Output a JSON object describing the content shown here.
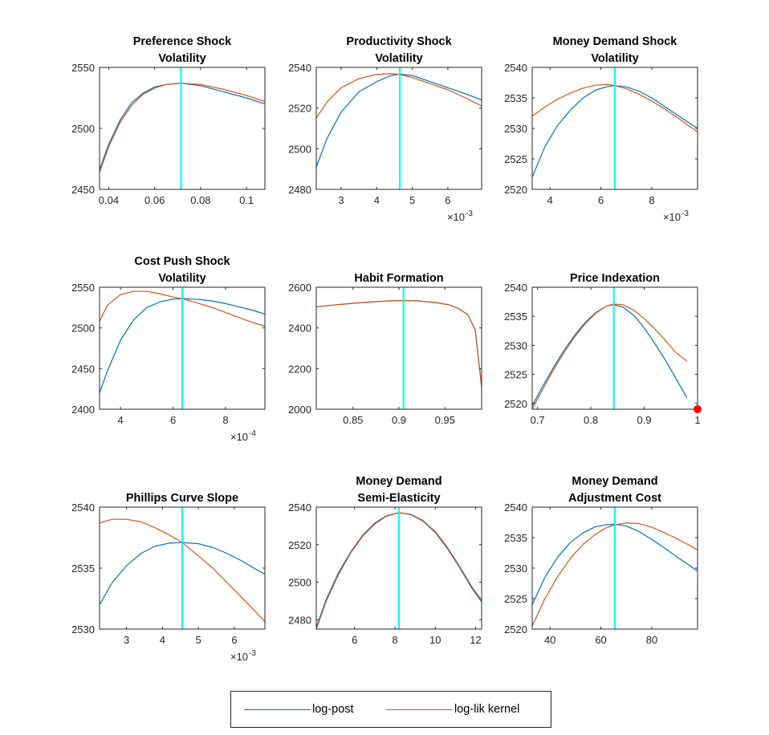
{
  "colors": {
    "log_post": "#0072BD",
    "log_lik_kernel": "#D95319",
    "mode_line": "#00FFFF",
    "bound_marker": "#FF0000",
    "axis": "#262626"
  },
  "legend": {
    "placement": "bottom-center",
    "entries": [
      "log-post",
      "log-lik kernel"
    ]
  },
  "chart_data": [
    {
      "type": "line",
      "title_lines": [
        "Preference Shock",
        "Volatility"
      ],
      "xlim": [
        0.036,
        0.108
      ],
      "ylim": [
        2450,
        2550
      ],
      "xticks": [
        0.04,
        0.06,
        0.08,
        0.1
      ],
      "xtick_labels": [
        "0.04",
        "0.06",
        "0.08",
        "0.1"
      ],
      "yticks": [
        2450,
        2500,
        2550
      ],
      "ytick_labels": [
        "2450",
        "2500",
        "2550"
      ],
      "x_multiplier": null,
      "mode_x": 0.0715,
      "series": [
        {
          "name": "log-post",
          "x": [
            0.036,
            0.04,
            0.045,
            0.05,
            0.055,
            0.06,
            0.065,
            0.0715,
            0.08,
            0.09,
            0.1,
            0.108
          ],
          "y": [
            2466,
            2487,
            2507,
            2521,
            2529,
            2534,
            2536,
            2537,
            2535,
            2530,
            2525,
            2520
          ]
        },
        {
          "name": "log-lik kernel",
          "x": [
            0.036,
            0.04,
            0.045,
            0.05,
            0.055,
            0.06,
            0.065,
            0.0715,
            0.08,
            0.09,
            0.1,
            0.108
          ],
          "y": [
            2464,
            2485,
            2505,
            2519,
            2528,
            2533,
            2536,
            2537,
            2536,
            2532,
            2527,
            2522
          ]
        }
      ]
    },
    {
      "type": "line",
      "title_lines": [
        "Productivity Shock",
        "Volatility"
      ],
      "xlim": [
        2.3,
        6.95
      ],
      "ylim": [
        2480,
        2540
      ],
      "xticks": [
        3,
        4,
        5,
        6
      ],
      "xtick_labels": [
        "3",
        "4",
        "5",
        "6"
      ],
      "yticks": [
        2480,
        2500,
        2520,
        2540
      ],
      "ytick_labels": [
        "2480",
        "2500",
        "2520",
        "2540"
      ],
      "x_multiplier": {
        "base": "×10",
        "exp": "-3"
      },
      "mode_x": 4.65,
      "series": [
        {
          "name": "log-post",
          "x": [
            2.3,
            2.6,
            3.0,
            3.5,
            4.0,
            4.4,
            4.65,
            5.0,
            5.5,
            6.0,
            6.5,
            6.95
          ],
          "y": [
            2491,
            2505,
            2518,
            2528,
            2533,
            2536,
            2536.7,
            2536,
            2533,
            2530,
            2527,
            2524
          ]
        },
        {
          "name": "log-lik kernel",
          "x": [
            2.3,
            2.6,
            3.0,
            3.5,
            4.0,
            4.4,
            4.65,
            5.0,
            5.5,
            6.0,
            6.5,
            6.95
          ],
          "y": [
            2515,
            2523,
            2530,
            2534.5,
            2536.5,
            2537,
            2536.5,
            2535,
            2532,
            2529,
            2525,
            2521
          ]
        }
      ]
    },
    {
      "type": "line",
      "title_lines": [
        "Money Demand Shock",
        "Volatility"
      ],
      "xlim": [
        3.3,
        9.8
      ],
      "ylim": [
        2520,
        2540
      ],
      "xticks": [
        4,
        6,
        8
      ],
      "xtick_labels": [
        "4",
        "6",
        "8"
      ],
      "yticks": [
        2520,
        2525,
        2530,
        2535,
        2540
      ],
      "ytick_labels": [
        "2520",
        "2525",
        "2530",
        "2535",
        "2540"
      ],
      "x_multiplier": {
        "base": "×10",
        "exp": "-3"
      },
      "mode_x": 6.55,
      "series": [
        {
          "name": "log-post",
          "x": [
            3.3,
            3.8,
            4.3,
            4.8,
            5.3,
            5.8,
            6.3,
            6.55,
            7.0,
            7.5,
            8.0,
            8.5,
            9.0,
            9.5,
            9.8
          ],
          "y": [
            2522,
            2527,
            2530.5,
            2533,
            2535,
            2536.3,
            2536.9,
            2537,
            2536.8,
            2536.1,
            2535,
            2533.6,
            2532.2,
            2530.8,
            2530
          ]
        },
        {
          "name": "log-lik kernel",
          "x": [
            3.3,
            3.8,
            4.3,
            4.8,
            5.3,
            5.8,
            6.3,
            6.55,
            7.0,
            7.5,
            8.0,
            8.5,
            9.0,
            9.5,
            9.8
          ],
          "y": [
            2532,
            2533.5,
            2534.8,
            2535.8,
            2536.6,
            2537.1,
            2537.2,
            2537,
            2536.5,
            2535.6,
            2534.5,
            2533.2,
            2531.8,
            2530.3,
            2529.4
          ]
        }
      ]
    },
    {
      "type": "line",
      "title_lines": [
        "Cost Push Shock",
        "Volatility"
      ],
      "xlim": [
        3.2,
        9.5
      ],
      "ylim": [
        2400,
        2550
      ],
      "xticks": [
        4,
        6,
        8
      ],
      "xtick_labels": [
        "4",
        "6",
        "8"
      ],
      "yticks": [
        2400,
        2450,
        2500,
        2550
      ],
      "ytick_labels": [
        "2400",
        "2450",
        "2500",
        "2550"
      ],
      "x_multiplier": {
        "base": "×10",
        "exp": "-4"
      },
      "mode_x": 6.35,
      "series": [
        {
          "name": "log-post",
          "x": [
            3.2,
            3.5,
            4.0,
            4.5,
            5.0,
            5.5,
            6.0,
            6.35,
            7.0,
            7.5,
            8.0,
            8.5,
            9.0,
            9.5
          ],
          "y": [
            2420,
            2447,
            2485,
            2510,
            2525,
            2532,
            2535.5,
            2536,
            2535,
            2533,
            2530,
            2526,
            2522,
            2517
          ]
        },
        {
          "name": "log-lik kernel",
          "x": [
            3.2,
            3.5,
            4.0,
            4.5,
            5.0,
            5.5,
            6.0,
            6.35,
            7.0,
            7.5,
            8.0,
            8.5,
            9.0,
            9.5
          ],
          "y": [
            2508,
            2528,
            2541,
            2545,
            2545,
            2542,
            2538,
            2536,
            2530,
            2525,
            2519,
            2513,
            2507,
            2502
          ]
        }
      ]
    },
    {
      "type": "line",
      "title_lines": [
        "Habit Formation"
      ],
      "xlim": [
        0.81,
        0.99
      ],
      "ylim": [
        2000,
        2600
      ],
      "xticks": [
        0.85,
        0.9,
        0.95
      ],
      "xtick_labels": [
        "0.85",
        "0.9",
        "0.95"
      ],
      "yticks": [
        2000,
        2200,
        2400,
        2600
      ],
      "ytick_labels": [
        "2000",
        "2200",
        "2400",
        "2600"
      ],
      "x_multiplier": null,
      "mode_x": 0.905,
      "series": [
        {
          "name": "log-post",
          "x": [
            0.81,
            0.83,
            0.85,
            0.87,
            0.89,
            0.905,
            0.92,
            0.94,
            0.955,
            0.965,
            0.975,
            0.983,
            0.99
          ],
          "y": [
            2504,
            2513,
            2521,
            2528,
            2533,
            2535,
            2533,
            2525,
            2513,
            2495,
            2465,
            2390,
            2110
          ]
        },
        {
          "name": "log-lik kernel",
          "x": [
            0.81,
            0.83,
            0.85,
            0.87,
            0.89,
            0.905,
            0.92,
            0.94,
            0.955,
            0.965,
            0.975,
            0.983,
            0.99
          ],
          "y": [
            2504,
            2513,
            2521,
            2528,
            2533,
            2535,
            2533,
            2525,
            2513,
            2495,
            2465,
            2390,
            2110
          ]
        }
      ]
    },
    {
      "type": "line",
      "title_lines": [
        "Price Indexation"
      ],
      "xlim": [
        0.69,
        1.0
      ],
      "ylim": [
        2519,
        2540
      ],
      "xticks": [
        0.7,
        0.8,
        0.9,
        1
      ],
      "xtick_labels": [
        "0.7",
        "0.8",
        "0.9",
        "1"
      ],
      "yticks": [
        2520,
        2525,
        2530,
        2535,
        2540
      ],
      "ytick_labels": [
        "2520",
        "2525",
        "2530",
        "2535",
        "2540"
      ],
      "x_multiplier": null,
      "mode_x": 0.843,
      "bound_marker": {
        "x": 1.0,
        "y": 2519
      },
      "series": [
        {
          "name": "log-post",
          "x": [
            0.69,
            0.71,
            0.73,
            0.75,
            0.77,
            0.79,
            0.81,
            0.83,
            0.843,
            0.86,
            0.88,
            0.9,
            0.92,
            0.94,
            0.96,
            0.98
          ],
          "y": [
            2519.6,
            2523,
            2526.2,
            2529.2,
            2531.8,
            2534,
            2535.7,
            2536.8,
            2537,
            2536.6,
            2535.2,
            2533,
            2530.3,
            2527.4,
            2524.2,
            2521
          ]
        },
        {
          "name": "log-lik kernel",
          "x": [
            0.69,
            0.71,
            0.73,
            0.75,
            0.77,
            0.79,
            0.81,
            0.83,
            0.843,
            0.86,
            0.88,
            0.9,
            0.92,
            0.94,
            0.96,
            0.98
          ],
          "y": [
            2519,
            2522.5,
            2525.8,
            2528.8,
            2531.5,
            2533.8,
            2535.6,
            2536.8,
            2537.1,
            2537,
            2536.1,
            2534.6,
            2532.8,
            2530.8,
            2528.7,
            2527.3
          ]
        }
      ]
    },
    {
      "type": "line",
      "title_lines": [
        "Phillips Curve Slope"
      ],
      "xlim": [
        2.25,
        6.85
      ],
      "ylim": [
        2530,
        2540
      ],
      "xticks": [
        3,
        4,
        5,
        6
      ],
      "xtick_labels": [
        "3",
        "4",
        "5",
        "6"
      ],
      "yticks": [
        2530,
        2535,
        2540
      ],
      "ytick_labels": [
        "2530",
        "2535",
        "2540"
      ],
      "x_multiplier": {
        "base": "×10",
        "exp": "-3"
      },
      "mode_x": 4.55,
      "series": [
        {
          "name": "log-post",
          "x": [
            2.25,
            2.6,
            3.0,
            3.4,
            3.8,
            4.2,
            4.55,
            5.0,
            5.4,
            5.8,
            6.2,
            6.6,
            6.85
          ],
          "y": [
            2532,
            2533.8,
            2535.2,
            2536.2,
            2536.8,
            2537.05,
            2537.1,
            2537,
            2536.7,
            2536.2,
            2535.6,
            2534.9,
            2534.5
          ]
        },
        {
          "name": "log-lik kernel",
          "x": [
            2.25,
            2.6,
            3.0,
            3.4,
            3.8,
            4.2,
            4.55,
            5.0,
            5.4,
            5.8,
            6.2,
            6.6,
            6.85
          ],
          "y": [
            2538.7,
            2539,
            2539,
            2538.8,
            2538.3,
            2537.7,
            2537.1,
            2536,
            2535,
            2533.8,
            2532.6,
            2531.4,
            2530.6
          ]
        }
      ]
    },
    {
      "type": "line",
      "title_lines": [
        "Money Demand",
        "Semi-Elasticity"
      ],
      "xlim": [
        4.1,
        12.3
      ],
      "ylim": [
        2475,
        2540
      ],
      "xticks": [
        6,
        8,
        10,
        12
      ],
      "xtick_labels": [
        "6",
        "8",
        "10",
        "12"
      ],
      "yticks": [
        2480,
        2500,
        2520,
        2540
      ],
      "ytick_labels": [
        "2480",
        "2500",
        "2520",
        "2540"
      ],
      "x_multiplier": null,
      "mode_x": 8.2,
      "series": [
        {
          "name": "log-post",
          "x": [
            4.1,
            4.6,
            5.2,
            5.8,
            6.4,
            7.0,
            7.6,
            8.2,
            8.8,
            9.4,
            10.0,
            10.6,
            11.2,
            11.8,
            12.3
          ],
          "y": [
            2476,
            2491,
            2505,
            2516,
            2525,
            2531.5,
            2535.5,
            2537,
            2536,
            2532.5,
            2526.5,
            2518,
            2508,
            2497,
            2489.5
          ]
        },
        {
          "name": "log-lik kernel",
          "x": [
            4.1,
            4.6,
            5.2,
            5.8,
            6.4,
            7.0,
            7.6,
            8.2,
            8.8,
            9.4,
            10.0,
            10.6,
            11.2,
            11.8,
            12.3
          ],
          "y": [
            2475,
            2490,
            2504,
            2515.5,
            2524.5,
            2531,
            2535.3,
            2537,
            2536.2,
            2532.8,
            2527,
            2518.6,
            2508.6,
            2497.8,
            2490.5
          ]
        }
      ]
    },
    {
      "type": "line",
      "title_lines": [
        "Money Demand",
        "Adjustment Cost"
      ],
      "xlim": [
        33,
        98
      ],
      "ylim": [
        2520,
        2540
      ],
      "xticks": [
        40,
        60,
        80
      ],
      "xtick_labels": [
        "40",
        "60",
        "80"
      ],
      "yticks": [
        2520,
        2525,
        2530,
        2535,
        2540
      ],
      "ytick_labels": [
        "2520",
        "2525",
        "2530",
        "2535",
        "2540"
      ],
      "x_multiplier": null,
      "mode_x": 65.5,
      "series": [
        {
          "name": "log-post",
          "x": [
            33,
            38,
            43,
            48,
            53,
            58,
            62,
            65.5,
            70,
            75,
            80,
            85,
            90,
            95,
            98
          ],
          "y": [
            2524,
            2528.5,
            2531.8,
            2534.2,
            2535.8,
            2536.8,
            2537.1,
            2537.2,
            2536.9,
            2536,
            2534.7,
            2533.3,
            2531.8,
            2530.4,
            2529.5
          ]
        },
        {
          "name": "log-lik kernel",
          "x": [
            33,
            38,
            43,
            48,
            53,
            58,
            62,
            65.5,
            70,
            75,
            80,
            85,
            90,
            95,
            98
          ],
          "y": [
            2520.5,
            2525,
            2528.6,
            2531.6,
            2533.9,
            2535.6,
            2536.6,
            2537.1,
            2537.4,
            2537.3,
            2536.7,
            2535.8,
            2534.8,
            2533.7,
            2533
          ]
        }
      ]
    }
  ]
}
